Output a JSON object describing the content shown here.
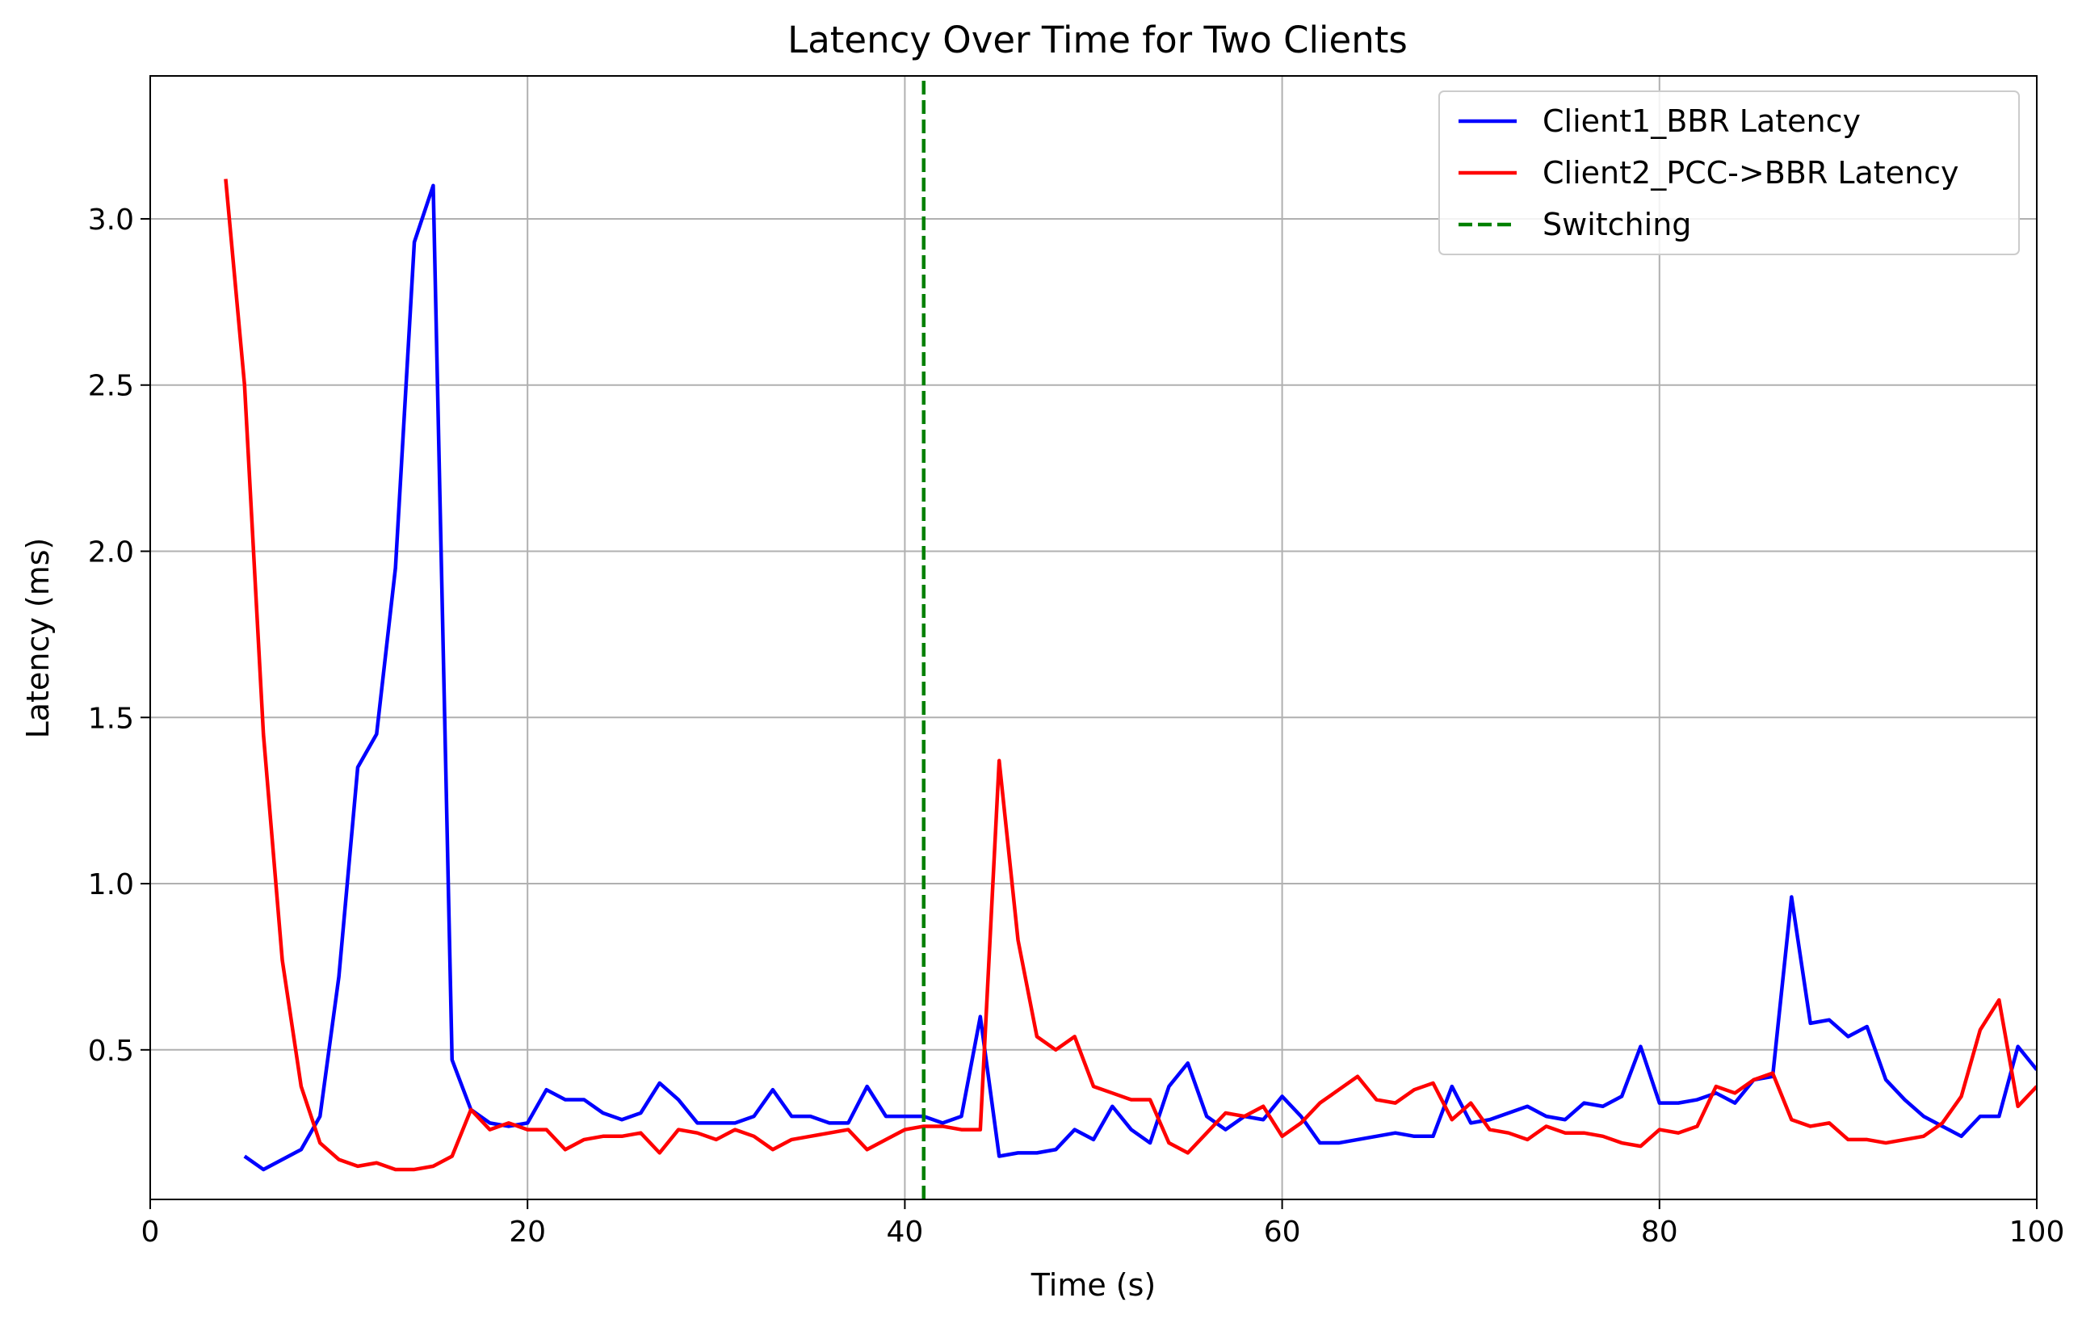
{
  "chart_data": {
    "type": "line",
    "title": "Latency Over Time for Two Clients",
    "xlabel": "Time (s)",
    "ylabel": "Latency (ms)",
    "xlim": [
      0,
      100
    ],
    "ylim": [
      0.05,
      3.43
    ],
    "xticks": [
      0,
      20,
      40,
      60,
      80,
      100
    ],
    "xtick_labels": [
      "0",
      "20",
      "40",
      "60",
      "80",
      "100"
    ],
    "yticks": [
      0.5,
      1.0,
      1.5,
      2.0,
      2.5,
      3.0
    ],
    "ytick_labels": [
      "0.5",
      "1.0",
      "1.5",
      "2.0",
      "2.5",
      "3.0"
    ],
    "grid": true,
    "legend_position": "top-right",
    "series": [
      {
        "name": "Client1_BBR Latency",
        "color": "#0000ff",
        "style": "solid",
        "x": [
          5,
          6,
          7,
          8,
          9,
          10,
          11,
          12,
          13,
          14,
          15,
          16,
          17,
          18,
          19,
          20,
          21,
          22,
          23,
          24,
          25,
          26,
          27,
          28,
          29,
          30,
          31,
          32,
          33,
          34,
          35,
          36,
          37,
          38,
          39,
          40,
          41,
          42,
          43,
          44,
          45,
          46,
          47,
          48,
          49,
          50,
          51,
          52,
          53,
          54,
          55,
          56,
          57,
          58,
          59,
          60,
          61,
          62,
          63,
          64,
          65,
          66,
          67,
          68,
          69,
          70,
          71,
          72,
          73,
          74,
          75,
          76,
          77,
          78,
          79,
          80,
          81,
          82,
          83,
          84,
          85,
          86,
          87,
          88,
          89,
          90,
          91,
          92,
          93,
          94,
          95,
          96,
          97,
          98,
          99,
          100
        ],
        "y": [
          0.18,
          0.14,
          0.17,
          0.2,
          0.3,
          0.72,
          1.35,
          1.45,
          1.95,
          2.93,
          3.1,
          0.47,
          0.32,
          0.28,
          0.27,
          0.28,
          0.38,
          0.35,
          0.35,
          0.31,
          0.29,
          0.31,
          0.4,
          0.35,
          0.28,
          0.28,
          0.28,
          0.3,
          0.38,
          0.3,
          0.3,
          0.28,
          0.28,
          0.39,
          0.3,
          0.3,
          0.3,
          0.28,
          0.3,
          0.6,
          0.18,
          0.19,
          0.19,
          0.2,
          0.26,
          0.23,
          0.33,
          0.26,
          0.22,
          0.39,
          0.46,
          0.3,
          0.26,
          0.3,
          0.29,
          0.36,
          0.3,
          0.22,
          0.22,
          0.23,
          0.24,
          0.25,
          0.24,
          0.24,
          0.39,
          0.28,
          0.29,
          0.31,
          0.33,
          0.3,
          0.29,
          0.34,
          0.33,
          0.36,
          0.51,
          0.34,
          0.34,
          0.35,
          0.37,
          0.34,
          0.41,
          0.42,
          0.96,
          0.58,
          0.59,
          0.54,
          0.57,
          0.41,
          0.35,
          0.3,
          0.27,
          0.24,
          0.3,
          0.3,
          0.51,
          0.44
        ]
      },
      {
        "name": "Client2_PCC->BBR Latency",
        "color": "#ff0000",
        "style": "solid",
        "x": [
          4,
          5,
          6,
          7,
          8,
          9,
          10,
          11,
          12,
          13,
          14,
          15,
          16,
          17,
          18,
          19,
          20,
          21,
          22,
          23,
          24,
          25,
          26,
          27,
          28,
          29,
          30,
          31,
          32,
          33,
          34,
          35,
          36,
          37,
          38,
          39,
          40,
          41,
          42,
          43,
          44,
          45,
          46,
          47,
          48,
          49,
          50,
          51,
          52,
          53,
          54,
          55,
          56,
          57,
          58,
          59,
          60,
          61,
          62,
          63,
          64,
          65,
          66,
          67,
          68,
          69,
          70,
          71,
          72,
          73,
          74,
          75,
          76,
          77,
          78,
          79,
          80,
          81,
          82,
          83,
          84,
          85,
          86,
          87,
          88,
          89,
          90,
          91,
          92,
          93,
          94,
          95,
          96,
          97,
          98,
          99,
          100
        ],
        "y": [
          3.12,
          2.5,
          1.45,
          0.77,
          0.39,
          0.22,
          0.17,
          0.15,
          0.16,
          0.14,
          0.14,
          0.15,
          0.18,
          0.32,
          0.26,
          0.28,
          0.26,
          0.26,
          0.2,
          0.23,
          0.24,
          0.24,
          0.25,
          0.19,
          0.26,
          0.25,
          0.23,
          0.26,
          0.24,
          0.2,
          0.23,
          0.24,
          0.25,
          0.26,
          0.2,
          0.23,
          0.26,
          0.27,
          0.27,
          0.26,
          0.26,
          1.37,
          0.83,
          0.54,
          0.5,
          0.54,
          0.39,
          0.37,
          0.35,
          0.35,
          0.22,
          0.19,
          0.25,
          0.31,
          0.3,
          0.33,
          0.24,
          0.28,
          0.34,
          0.38,
          0.42,
          0.35,
          0.34,
          0.38,
          0.4,
          0.29,
          0.34,
          0.26,
          0.25,
          0.23,
          0.27,
          0.25,
          0.25,
          0.24,
          0.22,
          0.21,
          0.26,
          0.25,
          0.27,
          0.39,
          0.37,
          0.41,
          0.43,
          0.29,
          0.27,
          0.28,
          0.23,
          0.23,
          0.22,
          0.23,
          0.24,
          0.28,
          0.36,
          0.56,
          0.65,
          0.33,
          0.39
        ]
      },
      {
        "name": "Switching",
        "color": "#008000",
        "style": "dashed",
        "x": [
          41,
          41
        ],
        "y": [
          0.05,
          3.43
        ]
      }
    ]
  }
}
